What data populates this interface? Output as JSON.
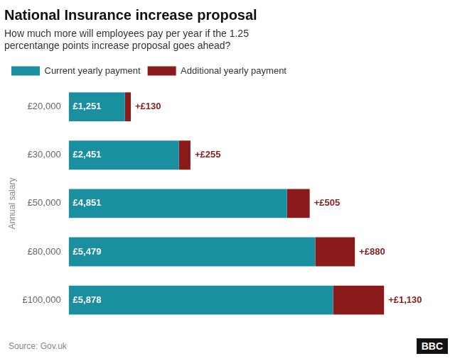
{
  "chart_data": {
    "type": "bar",
    "orientation": "horizontal",
    "stacked": true,
    "title": "National Insurance increase proposal",
    "subtitle": "How much more will employees pay per year if the 1.25\npercentange points increase proposal goes ahead?",
    "y_label": "Annual salary",
    "categories": [
      "£20,000",
      "£30,000",
      "£50,000",
      "£80,000",
      "£100,000"
    ],
    "series": [
      {
        "name": "Current yearly payment",
        "color": "#1a8fa0",
        "values": [
          1251,
          2451,
          4851,
          5479,
          5878
        ],
        "value_labels": [
          "£1,251",
          "£2,451",
          "£4,851",
          "£5,479",
          "£5,878"
        ]
      },
      {
        "name": "Additional yearly payment",
        "color": "#8b1a1a",
        "values": [
          130,
          255,
          505,
          880,
          1130
        ],
        "value_labels": [
          "+£130",
          "+£255",
          "+£505",
          "+£880",
          "+£1,130"
        ]
      }
    ],
    "xlim": [
      0,
      7400
    ],
    "data_labels": true,
    "tick_labels": "y",
    "grid": false,
    "legend": "top",
    "source": "Source: Gov.uk",
    "annotations": [
      "BBC"
    ]
  }
}
